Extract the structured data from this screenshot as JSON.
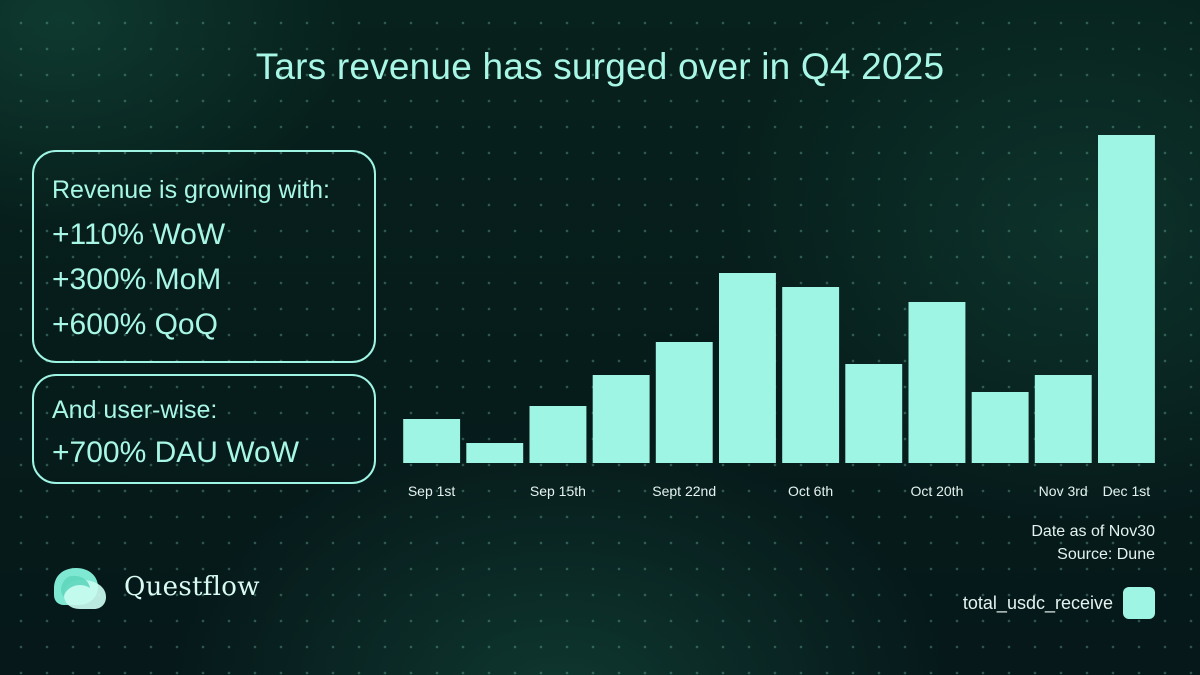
{
  "chart_data": {
    "type": "bar",
    "title": "Tars revenue has surged over in Q4 2025",
    "series_name": "total_usdc_receive",
    "categories": [
      "Sep 1st",
      "",
      "Sep 15th",
      "",
      "Sept 22nd",
      "",
      "Oct 6th",
      "",
      "Oct 20th",
      "",
      "Nov 3rd",
      "Dec 1st"
    ],
    "values": [
      44,
      20,
      57,
      88,
      121,
      190,
      176,
      99,
      161,
      71,
      88,
      328
    ],
    "ylim": [
      0,
      330
    ],
    "xlabel": "",
    "ylabel": "",
    "grid": false,
    "legend": "bottom-right",
    "color": "#9ff5e3"
  },
  "highlights": {
    "revenue": {
      "heading": "Revenue is growing with:",
      "lines": [
        "+110% WoW",
        "+300% MoM",
        "+600% QoQ"
      ]
    },
    "users": {
      "heading": "And user-wise:",
      "lines": [
        "+700% DAU WoW"
      ]
    }
  },
  "notes": {
    "date": "Date as of Nov30",
    "source": "Source: Dune"
  },
  "legend": {
    "label": "total_usdc_receive",
    "color": "#9ff5e3"
  },
  "brand": {
    "name": "Questflow",
    "icon": "questflow-logo-icon"
  }
}
